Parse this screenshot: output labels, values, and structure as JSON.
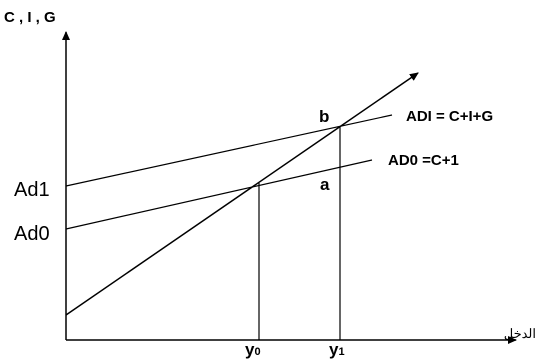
{
  "diagram": {
    "y_axis_label": "C , I , G",
    "x_axis_label": "الدخل",
    "intercept_high_label": "Ad1",
    "intercept_low_label": "Ad0",
    "line_high_label": "ADI = C+I+G",
    "line_low_label": "AD0 =C+1",
    "point_upper_label": "b",
    "point_lower_label": "a",
    "x0_label_main": "y",
    "x0_label_sub": "0",
    "x1_label_main": "y",
    "x1_label_sub": "1"
  }
}
